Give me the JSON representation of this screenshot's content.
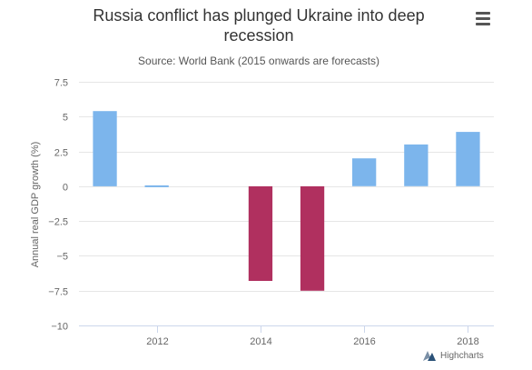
{
  "chart_data": {
    "type": "bar",
    "title": "Russia conflict has plunged Ukraine into deep recession",
    "title_lines": [
      "Russia conflict has plunged Ukraine into deep",
      "recession"
    ],
    "subtitle": "Source: World Bank (2015 onwards are forecasts)",
    "xlabel": "",
    "ylabel": "Annual real GDP growth (%)",
    "ylim": [
      -10,
      7.5
    ],
    "yticks": [
      7.5,
      5,
      2.5,
      0,
      -2.5,
      -5,
      -7.5,
      -10
    ],
    "ytick_labels": [
      "7.5",
      "5",
      "2.5",
      "0",
      "−2.5",
      "−5",
      "−7.5",
      "−10"
    ],
    "xlim": [
      2010.5,
      2018.5
    ],
    "xticks": [
      2012,
      2014,
      2016,
      2018
    ],
    "xtick_labels": [
      "2012",
      "2014",
      "2016",
      "2018"
    ],
    "grid": true,
    "colors": {
      "positive": "#7cb5ec",
      "negative": "#b0305f"
    },
    "series": [
      {
        "x": [
          2011,
          2012,
          2013,
          2014,
          2015,
          2016,
          2017,
          2018
        ],
        "values": [
          5.4,
          0.1,
          0,
          -6.8,
          -7.5,
          2.0,
          3.0,
          3.9
        ]
      }
    ]
  },
  "menu": {
    "icon": "hamburger-menu-icon"
  },
  "credits": {
    "text": "Highcharts",
    "icon": "highcharts-logo-icon"
  }
}
